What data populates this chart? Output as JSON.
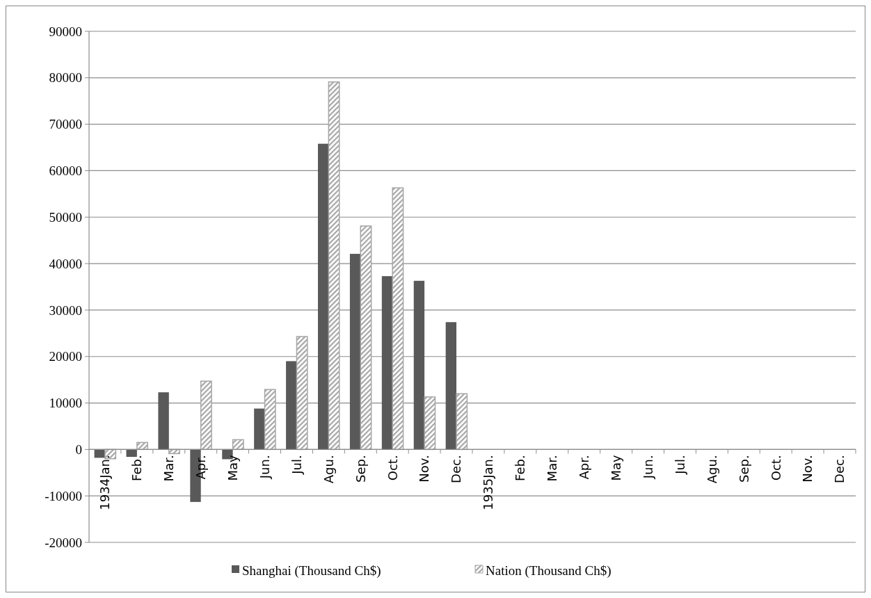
{
  "chart_data": {
    "type": "bar",
    "categories": [
      "1934Jan.",
      "Feb.",
      "Mar.",
      "Apr.",
      "May",
      "Jun.",
      "Jul.",
      "Agu.",
      "Sep.",
      "Oct.",
      "Nov.",
      "Dec.",
      "1935Jan.",
      "Feb.",
      "Mar.",
      "Apr.",
      "May",
      "Jun.",
      "Jul.",
      "Agu.",
      "Sep.",
      "Oct.",
      "Nov.",
      "Dec."
    ],
    "series": [
      {
        "name": "Shanghai (Thousand Ch$)",
        "color": "#595959",
        "values": [
          -1800,
          -1600,
          12300,
          -11300,
          -2100,
          8800,
          19000,
          65800,
          42100,
          37300,
          36300,
          27400,
          null,
          null,
          null,
          null,
          null,
          null,
          null,
          null,
          null,
          null,
          null,
          null
        ]
      },
      {
        "name": "Nation (Thousand Ch$)",
        "color": "#a6a6a6",
        "values": [
          -2000,
          1500,
          -900,
          14700,
          2100,
          12900,
          24300,
          79100,
          48100,
          56300,
          11300,
          12000,
          null,
          null,
          null,
          null,
          null,
          null,
          null,
          null,
          null,
          null,
          null,
          null
        ]
      }
    ],
    "ylim": [
      -20000,
      90000
    ],
    "yticks": [
      -20000,
      -10000,
      0,
      10000,
      20000,
      30000,
      40000,
      50000,
      60000,
      70000,
      80000,
      90000
    ],
    "grid": "y",
    "legend": "bottom"
  }
}
